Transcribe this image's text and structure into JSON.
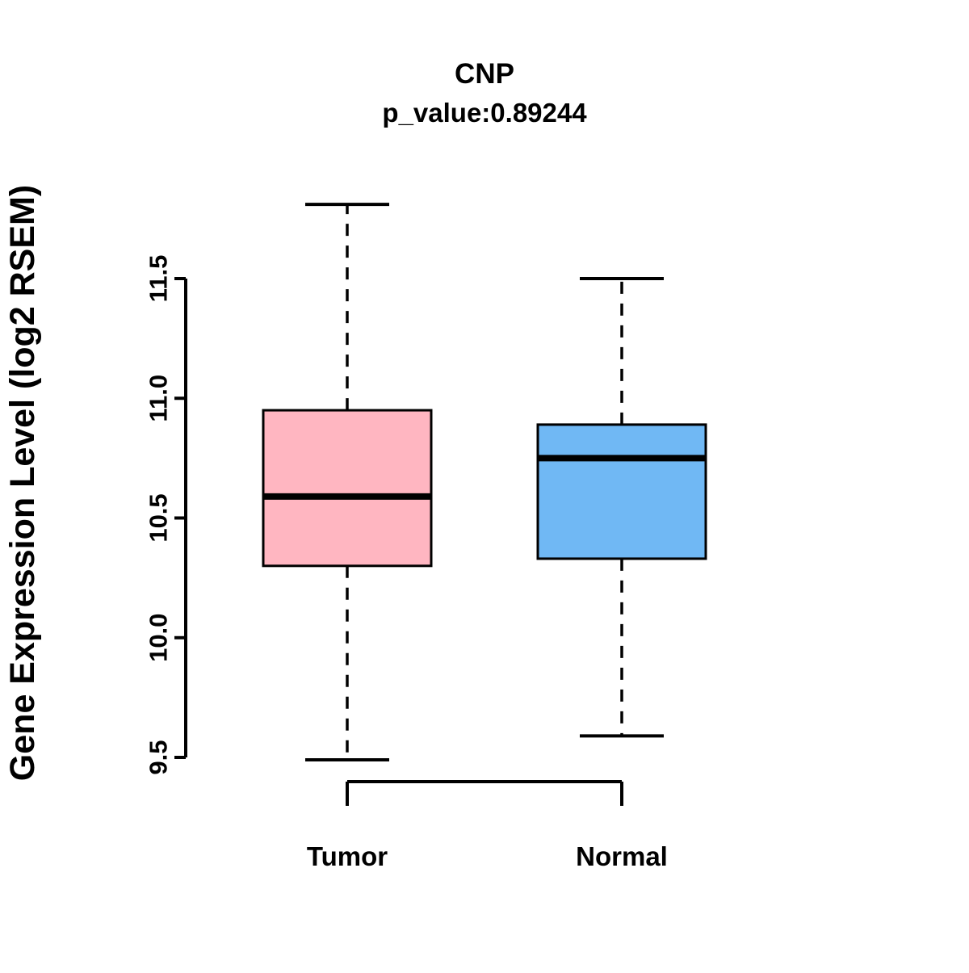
{
  "chart_data": {
    "type": "boxplot",
    "title": "CNP",
    "subtitle": "p_value:0.89244",
    "ylabel": "Gene Expression Level (log2 RSEM)",
    "xlabel": "",
    "ylim": [
      9.5,
      11.5
    ],
    "yticks": [
      "9.5",
      "10.0",
      "10.5",
      "11.0",
      "11.5"
    ],
    "grid": false,
    "legend": "none",
    "categories": [
      "Tumor",
      "Normal"
    ],
    "groups": [
      {
        "label": "Tumor",
        "color": "#FFB6C1",
        "stats": {
          "whisker_low": 9.49,
          "q1": 10.3,
          "median": 10.59,
          "q3": 10.95,
          "whisker_high": 11.81
        }
      },
      {
        "label": "Normal",
        "color": "#70B8F4",
        "stats": {
          "whisker_low": 9.59,
          "q1": 10.33,
          "median": 10.75,
          "q3": 10.89,
          "whisker_high": 11.5
        }
      }
    ]
  }
}
